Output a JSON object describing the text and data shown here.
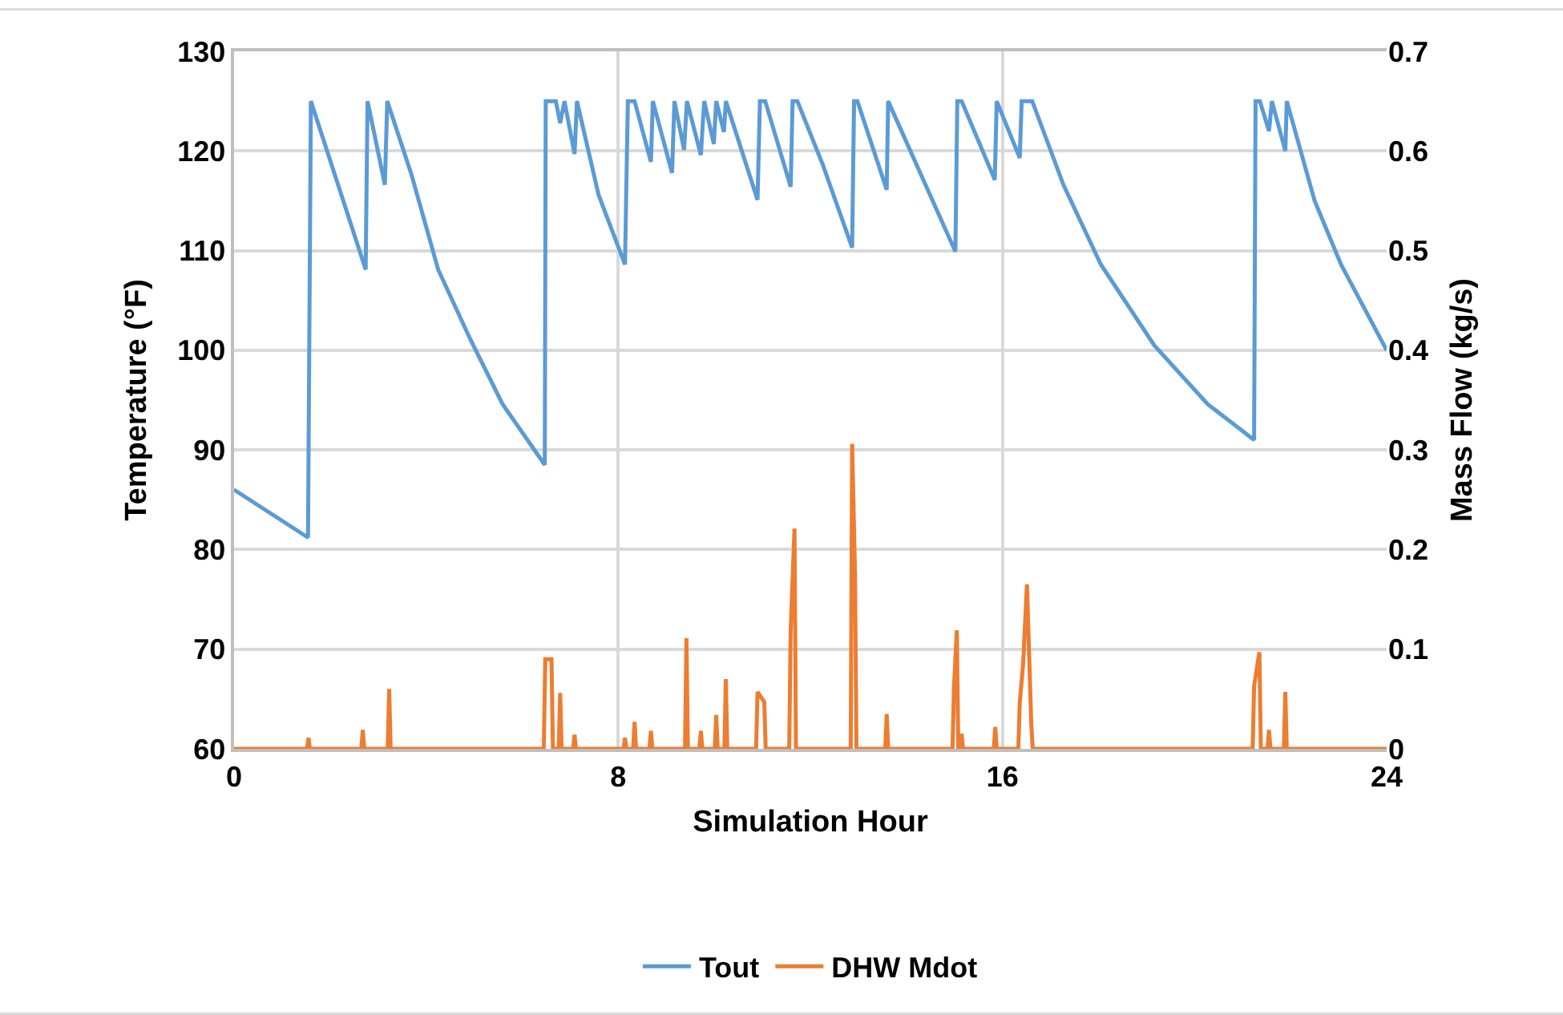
{
  "chart_data": {
    "type": "line",
    "xlabel": "Simulation Hour",
    "ylabel": "Temperature (°F)",
    "y2label": "Mass Flow (kg/s)",
    "xlim": [
      0,
      24
    ],
    "xticks": [
      0,
      8,
      16,
      24
    ],
    "ylim": [
      60,
      130
    ],
    "yticks": [
      60,
      70,
      80,
      90,
      100,
      110,
      120,
      130
    ],
    "y2lim": [
      0,
      0.7
    ],
    "y2ticks": [
      0,
      0.1,
      0.2,
      0.3,
      0.4,
      0.5,
      0.6,
      0.7
    ],
    "grid": true,
    "legend": "bottom",
    "marker": "none",
    "line_style": "solid",
    "series": [
      {
        "name": "Tout",
        "color": "#5b9bd5",
        "x": [
          0,
          1.54,
          1.6,
          2.74,
          2.78,
          3.14,
          3.19,
          3.69,
          4.25,
          4.92,
          5.59,
          6.47,
          6.49,
          6.7,
          6.79,
          6.88,
          7.09,
          7.14,
          7.59,
          8.14,
          8.2,
          8.34,
          8.68,
          8.72,
          9.12,
          9.17,
          9.37,
          9.43,
          9.72,
          9.79,
          9.99,
          10.04,
          10.2,
          10.24,
          10.9,
          10.95,
          11.06,
          11.59,
          11.63,
          11.73,
          12.26,
          12.87,
          12.91,
          12.98,
          13.59,
          13.62,
          14.37,
          15.02,
          15.06,
          15.15,
          15.84,
          15.88,
          16.36,
          16.4,
          16.62,
          17.27,
          18.05,
          19.16,
          20.27,
          21.24,
          21.27,
          21.36,
          21.55,
          21.61,
          21.89,
          21.92,
          22.5,
          23.05,
          24
        ],
        "values": [
          86,
          81.2,
          125,
          108.1,
          125,
          116.6,
          125,
          117.7,
          108.1,
          101.1,
          94.6,
          88.5,
          125,
          125,
          122.8,
          125,
          119.7,
          125,
          115.6,
          108.6,
          125,
          125,
          118.9,
          125,
          117.8,
          125,
          120.1,
          125,
          119.6,
          125,
          120.7,
          125,
          121.9,
          125,
          115.1,
          125,
          125,
          116.4,
          125,
          125,
          118.6,
          110.3,
          125,
          125,
          116.1,
          125,
          116.9,
          109.9,
          125,
          125,
          117.1,
          125,
          119.3,
          125,
          125,
          116.6,
          108.6,
          100.5,
          94.6,
          91.0,
          125,
          125,
          122.0,
          125,
          120.0,
          125,
          115.0,
          108.6,
          100
        ]
      },
      {
        "name": "DHW Mdot",
        "color": "#ed7d31",
        "axis": "y2",
        "x": [
          0,
          1.52,
          1.55,
          1.58,
          2.65,
          2.68,
          2.71,
          3.2,
          3.23,
          3.26,
          6.45,
          6.48,
          6.61,
          6.64,
          6.76,
          6.79,
          6.82,
          7.06,
          7.09,
          7.12,
          8.11,
          8.14,
          8.17,
          8.31,
          8.34,
          8.37,
          8.65,
          8.68,
          8.71,
          9.39,
          9.42,
          9.45,
          9.69,
          9.72,
          9.75,
          10.01,
          10.04,
          10.07,
          10.21,
          10.24,
          10.27,
          10.87,
          10.9,
          11.04,
          11.07,
          11.56,
          11.59,
          11.67,
          11.7,
          12.84,
          12.87,
          12.93,
          12.96,
          13.56,
          13.59,
          13.62,
          14.96,
          14.99,
          15.05,
          15.08,
          15.12,
          15.15,
          15.18,
          15.82,
          15.85,
          15.88,
          16.33,
          16.36,
          16.43,
          16.51,
          16.6,
          16.63,
          21.21,
          21.24,
          21.35,
          21.38,
          21.52,
          21.55,
          21.58,
          21.86,
          21.89,
          21.92,
          24
        ],
        "values": [
          0,
          0,
          0.011,
          0,
          0,
          0.019,
          0,
          0,
          0.06,
          0,
          0,
          0.09,
          0.09,
          0,
          0,
          0.056,
          0,
          0,
          0.014,
          0,
          0,
          0.011,
          0,
          0,
          0.027,
          0,
          0,
          0.018,
          0,
          0,
          0.111,
          0,
          0,
          0.018,
          0,
          0,
          0.034,
          0,
          0,
          0.07,
          0,
          0,
          0.057,
          0.047,
          0,
          0,
          0.119,
          0.221,
          0,
          0,
          0.306,
          0.175,
          0,
          0,
          0.035,
          0,
          0,
          0.061,
          0.119,
          0,
          0,
          0.015,
          0,
          0,
          0.022,
          0,
          0,
          0.046,
          0.085,
          0.165,
          0.025,
          0,
          0,
          0.063,
          0.097,
          0,
          0,
          0.019,
          0,
          0,
          0.057,
          0,
          0
        ]
      }
    ]
  }
}
